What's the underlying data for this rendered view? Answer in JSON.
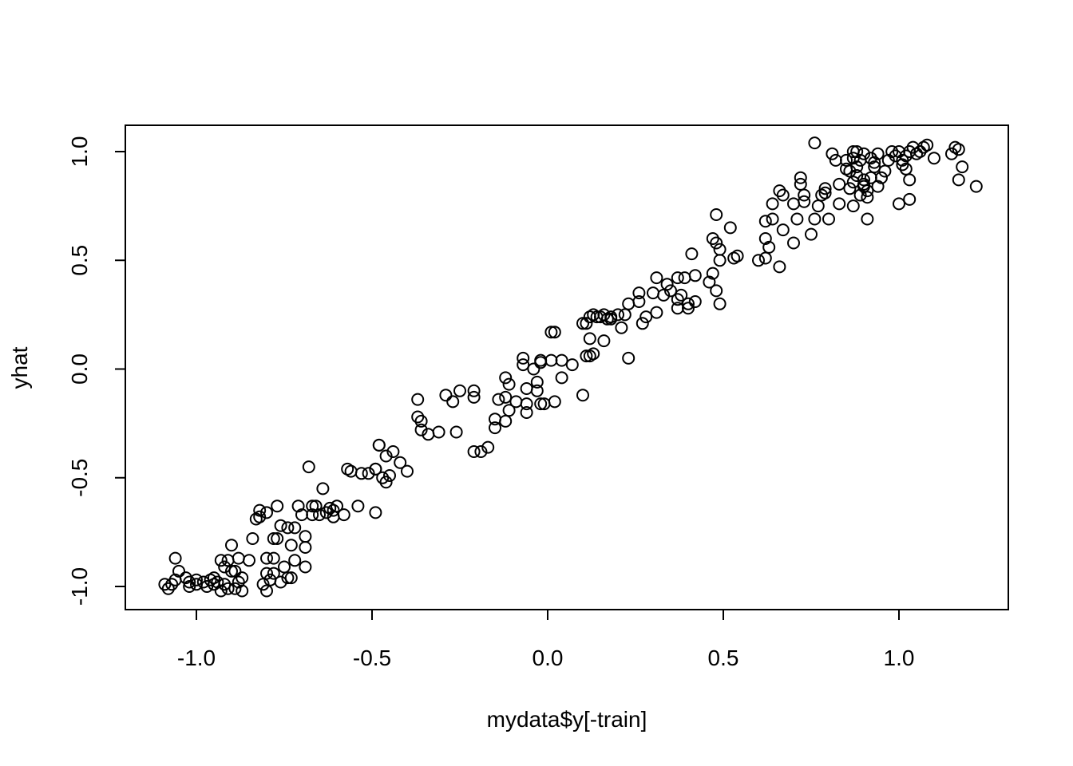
{
  "chart_data": {
    "type": "scatter",
    "title": "",
    "xlabel": "mydata$y[-train]",
    "ylabel": "yhat",
    "xlim": [
      -1.2,
      1.3
    ],
    "ylim": [
      -1.1,
      1.12
    ],
    "x_ticks": [
      -1.0,
      -0.5,
      0.0,
      0.5,
      1.0
    ],
    "x_tick_labels": [
      "-1.0",
      "-0.5",
      "0.0",
      "0.5",
      "1.0"
    ],
    "y_ticks": [
      -1.0,
      -0.5,
      0.0,
      0.5,
      1.0
    ],
    "y_tick_labels": [
      "-1.0",
      "-0.5",
      "0.0",
      "0.5",
      "1.0"
    ],
    "grid": false,
    "legend": "none",
    "marker": "open-circle",
    "series": [
      {
        "points": [
          [
            -1.09,
            -0.99
          ],
          [
            -1.08,
            -1.01
          ],
          [
            -1.07,
            -0.99
          ],
          [
            -1.06,
            -0.97
          ],
          [
            -1.06,
            -0.87
          ],
          [
            -1.05,
            -0.93
          ],
          [
            -1.03,
            -0.96
          ],
          [
            -1.02,
            -0.98
          ],
          [
            -1.02,
            -1.0
          ],
          [
            -1.0,
            -0.97
          ],
          [
            -1.0,
            -0.99
          ],
          [
            -0.98,
            -0.98
          ],
          [
            -0.97,
            -1.0
          ],
          [
            -0.96,
            -0.97
          ],
          [
            -0.95,
            -0.96
          ],
          [
            -0.95,
            -0.99
          ],
          [
            -0.94,
            -0.98
          ],
          [
            -0.93,
            -1.02
          ],
          [
            -0.93,
            -0.88
          ],
          [
            -0.92,
            -0.99
          ],
          [
            -0.92,
            -0.91
          ],
          [
            -0.91,
            -0.88
          ],
          [
            -0.91,
            -1.01
          ],
          [
            -0.9,
            -0.93
          ],
          [
            -0.9,
            -0.81
          ],
          [
            -0.89,
            -1.01
          ],
          [
            -0.89,
            -0.93
          ],
          [
            -0.88,
            -0.87
          ],
          [
            -0.88,
            -0.98
          ],
          [
            -0.87,
            -0.96
          ],
          [
            -0.87,
            -1.02
          ],
          [
            -0.85,
            -0.88
          ],
          [
            -0.84,
            -0.78
          ],
          [
            -0.83,
            -0.69
          ],
          [
            -0.82,
            -0.65
          ],
          [
            -0.82,
            -0.68
          ],
          [
            -0.81,
            -0.99
          ],
          [
            -0.8,
            -0.66
          ],
          [
            -0.8,
            -0.87
          ],
          [
            -0.8,
            -0.94
          ],
          [
            -0.8,
            -1.02
          ],
          [
            -0.79,
            -0.97
          ],
          [
            -0.78,
            -0.78
          ],
          [
            -0.78,
            -0.87
          ],
          [
            -0.78,
            -0.94
          ],
          [
            -0.77,
            -0.63
          ],
          [
            -0.77,
            -0.78
          ],
          [
            -0.76,
            -0.98
          ],
          [
            -0.76,
            -0.72
          ],
          [
            -0.75,
            -0.91
          ],
          [
            -0.74,
            -0.73
          ],
          [
            -0.74,
            -0.96
          ],
          [
            -0.73,
            -0.81
          ],
          [
            -0.73,
            -0.96
          ],
          [
            -0.72,
            -0.73
          ],
          [
            -0.72,
            -0.88
          ],
          [
            -0.71,
            -0.63
          ],
          [
            -0.7,
            -0.67
          ],
          [
            -0.69,
            -0.77
          ],
          [
            -0.69,
            -0.82
          ],
          [
            -0.69,
            -0.91
          ],
          [
            -0.68,
            -0.45
          ],
          [
            -0.67,
            -0.63
          ],
          [
            -0.67,
            -0.67
          ],
          [
            -0.66,
            -0.63
          ],
          [
            -0.65,
            -0.67
          ],
          [
            -0.64,
            -0.55
          ],
          [
            -0.63,
            -0.66
          ],
          [
            -0.62,
            -0.64
          ],
          [
            -0.61,
            -0.68
          ],
          [
            -0.61,
            -0.65
          ],
          [
            -0.6,
            -0.63
          ],
          [
            -0.58,
            -0.67
          ],
          [
            -0.57,
            -0.46
          ],
          [
            -0.56,
            -0.47
          ],
          [
            -0.54,
            -0.63
          ],
          [
            -0.53,
            -0.48
          ],
          [
            -0.51,
            -0.48
          ],
          [
            -0.49,
            -0.46
          ],
          [
            -0.49,
            -0.46
          ],
          [
            -0.49,
            -0.66
          ],
          [
            -0.48,
            -0.35
          ],
          [
            -0.48,
            -0.35
          ],
          [
            -0.47,
            -0.5
          ],
          [
            -0.46,
            -0.4
          ],
          [
            -0.46,
            -0.52
          ],
          [
            -0.45,
            -0.49
          ],
          [
            -0.44,
            -0.38
          ],
          [
            -0.42,
            -0.43
          ],
          [
            -0.4,
            -0.47
          ],
          [
            -0.37,
            -0.14
          ],
          [
            -0.37,
            -0.22
          ],
          [
            -0.36,
            -0.24
          ],
          [
            -0.36,
            -0.28
          ],
          [
            -0.34,
            -0.3
          ],
          [
            -0.31,
            -0.29
          ],
          [
            -0.29,
            -0.12
          ],
          [
            -0.27,
            -0.15
          ],
          [
            -0.26,
            -0.29
          ],
          [
            -0.25,
            -0.1
          ],
          [
            -0.21,
            -0.38
          ],
          [
            -0.21,
            -0.1
          ],
          [
            -0.21,
            -0.13
          ],
          [
            -0.19,
            -0.38
          ],
          [
            -0.17,
            -0.36
          ],
          [
            -0.15,
            -0.23
          ],
          [
            -0.15,
            -0.27
          ],
          [
            -0.14,
            -0.14
          ],
          [
            -0.12,
            -0.04
          ],
          [
            -0.12,
            -0.13
          ],
          [
            -0.12,
            -0.24
          ],
          [
            -0.11,
            -0.07
          ],
          [
            -0.11,
            -0.19
          ],
          [
            -0.09,
            -0.15
          ],
          [
            -0.07,
            0.05
          ],
          [
            -0.07,
            0.02
          ],
          [
            -0.06,
            -0.09
          ],
          [
            -0.06,
            -0.16
          ],
          [
            -0.06,
            -0.2
          ],
          [
            -0.04,
            0.0
          ],
          [
            -0.03,
            -0.06
          ],
          [
            -0.03,
            -0.1
          ],
          [
            -0.02,
            0.03
          ],
          [
            -0.02,
            -0.16
          ],
          [
            -0.02,
            0.04
          ],
          [
            -0.01,
            -0.16
          ],
          [
            0.01,
            0.04
          ],
          [
            0.01,
            0.17
          ],
          [
            0.02,
            0.17
          ],
          [
            0.02,
            -0.15
          ],
          [
            0.04,
            -0.04
          ],
          [
            0.04,
            0.04
          ],
          [
            0.07,
            0.02
          ],
          [
            0.1,
            0.21
          ],
          [
            0.1,
            -0.12
          ],
          [
            0.11,
            0.06
          ],
          [
            0.11,
            0.21
          ],
          [
            0.12,
            0.24
          ],
          [
            0.12,
            0.14
          ],
          [
            0.12,
            0.06
          ],
          [
            0.13,
            0.07
          ],
          [
            0.13,
            0.25
          ],
          [
            0.14,
            0.24
          ],
          [
            0.15,
            0.24
          ],
          [
            0.16,
            0.13
          ],
          [
            0.16,
            0.25
          ],
          [
            0.17,
            0.23
          ],
          [
            0.18,
            0.23
          ],
          [
            0.18,
            0.24
          ],
          [
            0.2,
            0.25
          ],
          [
            0.21,
            0.19
          ],
          [
            0.22,
            0.25
          ],
          [
            0.23,
            0.05
          ],
          [
            0.23,
            0.3
          ],
          [
            0.26,
            0.31
          ],
          [
            0.26,
            0.35
          ],
          [
            0.27,
            0.21
          ],
          [
            0.28,
            0.24
          ],
          [
            0.3,
            0.35
          ],
          [
            0.31,
            0.42
          ],
          [
            0.31,
            0.26
          ],
          [
            0.33,
            0.34
          ],
          [
            0.34,
            0.39
          ],
          [
            0.35,
            0.36
          ],
          [
            0.37,
            0.32
          ],
          [
            0.37,
            0.28
          ],
          [
            0.37,
            0.42
          ],
          [
            0.38,
            0.34
          ],
          [
            0.39,
            0.42
          ],
          [
            0.4,
            0.3
          ],
          [
            0.4,
            0.28
          ],
          [
            0.41,
            0.53
          ],
          [
            0.42,
            0.31
          ],
          [
            0.42,
            0.43
          ],
          [
            0.46,
            0.4
          ],
          [
            0.47,
            0.6
          ],
          [
            0.47,
            0.44
          ],
          [
            0.48,
            0.58
          ],
          [
            0.48,
            0.36
          ],
          [
            0.48,
            0.71
          ],
          [
            0.49,
            0.55
          ],
          [
            0.49,
            0.3
          ],
          [
            0.49,
            0.5
          ],
          [
            0.52,
            0.65
          ],
          [
            0.53,
            0.51
          ],
          [
            0.54,
            0.52
          ],
          [
            0.6,
            0.5
          ],
          [
            0.62,
            0.68
          ],
          [
            0.62,
            0.6
          ],
          [
            0.62,
            0.51
          ],
          [
            0.63,
            0.56
          ],
          [
            0.64,
            0.76
          ],
          [
            0.64,
            0.69
          ],
          [
            0.66,
            0.47
          ],
          [
            0.66,
            0.82
          ],
          [
            0.67,
            0.8
          ],
          [
            0.67,
            0.64
          ],
          [
            0.7,
            0.76
          ],
          [
            0.7,
            0.58
          ],
          [
            0.71,
            0.69
          ],
          [
            0.72,
            0.88
          ],
          [
            0.72,
            0.85
          ],
          [
            0.73,
            0.77
          ],
          [
            0.73,
            0.8
          ],
          [
            0.75,
            0.62
          ],
          [
            0.76,
            0.69
          ],
          [
            0.76,
            1.04
          ],
          [
            0.77,
            0.75
          ],
          [
            0.78,
            0.8
          ],
          [
            0.79,
            0.83
          ],
          [
            0.79,
            0.81
          ],
          [
            0.8,
            0.69
          ],
          [
            0.81,
            0.99
          ],
          [
            0.82,
            0.96
          ],
          [
            0.83,
            0.85
          ],
          [
            0.83,
            0.76
          ],
          [
            0.85,
            0.96
          ],
          [
            0.85,
            0.92
          ],
          [
            0.86,
            0.83
          ],
          [
            0.86,
            0.91
          ],
          [
            0.87,
            1.0
          ],
          [
            0.87,
            0.97
          ],
          [
            0.87,
            0.86
          ],
          [
            0.87,
            0.75
          ],
          [
            0.88,
            1.0
          ],
          [
            0.88,
            0.89
          ],
          [
            0.88,
            0.93
          ],
          [
            0.89,
            0.8
          ],
          [
            0.89,
            0.96
          ],
          [
            0.9,
            0.87
          ],
          [
            0.9,
            0.84
          ],
          [
            0.9,
            0.99
          ],
          [
            0.9,
            0.85
          ],
          [
            0.91,
            0.69
          ],
          [
            0.91,
            0.82
          ],
          [
            0.91,
            0.79
          ],
          [
            0.92,
            0.97
          ],
          [
            0.92,
            0.88
          ],
          [
            0.93,
            0.93
          ],
          [
            0.93,
            0.95
          ],
          [
            0.94,
            0.84
          ],
          [
            0.94,
            0.99
          ],
          [
            0.95,
            0.88
          ],
          [
            0.96,
            0.91
          ],
          [
            0.97,
            0.96
          ],
          [
            0.98,
            1.0
          ],
          [
            0.99,
            0.98
          ],
          [
            1.0,
            1.0
          ],
          [
            1.0,
            0.76
          ],
          [
            1.01,
            0.96
          ],
          [
            1.01,
            0.94
          ],
          [
            1.02,
            0.98
          ],
          [
            1.02,
            0.92
          ],
          [
            1.03,
            0.78
          ],
          [
            1.03,
            1.0
          ],
          [
            1.03,
            0.87
          ],
          [
            1.04,
            1.02
          ],
          [
            1.05,
            0.99
          ],
          [
            1.06,
            1.0
          ],
          [
            1.07,
            1.02
          ],
          [
            1.08,
            1.03
          ],
          [
            1.1,
            0.97
          ],
          [
            1.15,
            0.99
          ],
          [
            1.16,
            1.02
          ],
          [
            1.17,
            1.01
          ],
          [
            1.17,
            0.87
          ],
          [
            1.18,
            0.93
          ],
          [
            1.22,
            0.84
          ]
        ]
      }
    ]
  }
}
